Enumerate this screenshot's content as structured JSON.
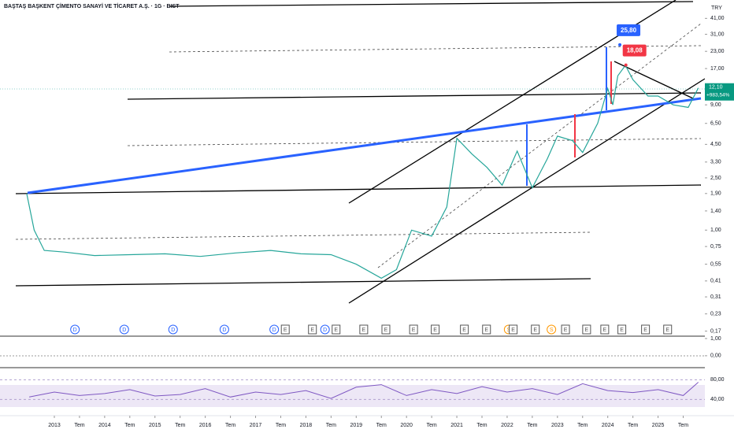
{
  "chart_data": {
    "type": "line",
    "title": "BAŞTAŞ BAŞKENT ÇİMENTO SANAYİ VE TİCARET A.Ş. · 1G · BIST",
    "currency": "TRY",
    "log_scale": true,
    "xlim": [
      2011.92,
      2025.93
    ],
    "xticks": [
      {
        "value": 2013,
        "label": "2013"
      },
      {
        "value": 2013.5,
        "label": "Tem"
      },
      {
        "value": 2014,
        "label": "2014"
      },
      {
        "value": 2014.5,
        "label": "Tem"
      },
      {
        "value": 2015,
        "label": "2015"
      },
      {
        "value": 2015.5,
        "label": "Tem"
      },
      {
        "value": 2016,
        "label": "2016"
      },
      {
        "value": 2016.5,
        "label": "Tem"
      },
      {
        "value": 2017,
        "label": "2017"
      },
      {
        "value": 2017.5,
        "label": "Tem"
      },
      {
        "value": 2018,
        "label": "2018"
      },
      {
        "value": 2018.5,
        "label": "Tem"
      },
      {
        "value": 2019,
        "label": "2019"
      },
      {
        "value": 2019.5,
        "label": "Tem"
      },
      {
        "value": 2020,
        "label": "2020"
      },
      {
        "value": 2020.5,
        "label": "Tem"
      },
      {
        "value": 2021,
        "label": "2021"
      },
      {
        "value": 2021.5,
        "label": "Tem"
      },
      {
        "value": 2022,
        "label": "2022"
      },
      {
        "value": 2022.5,
        "label": "Tem"
      },
      {
        "value": 2023,
        "label": "2023"
      },
      {
        "value": 2023.5,
        "label": "Tem"
      },
      {
        "value": 2024,
        "label": "2024"
      },
      {
        "value": 2024.5,
        "label": "Tem"
      },
      {
        "value": 2025,
        "label": "2025"
      },
      {
        "value": 2025.5,
        "label": "Tem"
      }
    ],
    "ylim": [
      0.16,
      46
    ],
    "yticks": [
      {
        "value": 41,
        "label": "41,00"
      },
      {
        "value": 31,
        "label": "31,00"
      },
      {
        "value": 23,
        "label": "23,00"
      },
      {
        "value": 17,
        "label": "17,00"
      },
      {
        "value": 9,
        "label": "9,00"
      },
      {
        "value": 6.5,
        "label": "6,50"
      },
      {
        "value": 4.5,
        "label": "4,50"
      },
      {
        "value": 3.3,
        "label": "3,30"
      },
      {
        "value": 2.5,
        "label": "2,50"
      },
      {
        "value": 1.9,
        "label": "1,90"
      },
      {
        "value": 1.4,
        "label": "1,40"
      },
      {
        "value": 1,
        "label": "1,00"
      },
      {
        "value": 0.75,
        "label": "0,75"
      },
      {
        "value": 0.55,
        "label": "0,55"
      },
      {
        "value": 0.41,
        "label": "0,41"
      },
      {
        "value": 0.31,
        "label": "0,31"
      },
      {
        "value": 0.23,
        "label": "0,23"
      },
      {
        "value": 0.17,
        "label": "0,17"
      }
    ],
    "series": [
      {
        "name": "BAŞTAŞ",
        "color": "#26a69a",
        "x": [
          2012.45,
          2012.6,
          2012.8,
          2013.2,
          2013.8,
          2014.5,
          2015.2,
          2015.9,
          2016.6,
          2017.3,
          2017.9,
          2018.5,
          2019.0,
          2019.5,
          2019.8,
          2020.1,
          2020.5,
          2020.8,
          2021.0,
          2021.3,
          2021.6,
          2021.9,
          2022.2,
          2022.5,
          2022.8,
          2023.0,
          2023.3,
          2023.5,
          2023.8,
          2024.0,
          2024.1,
          2024.2,
          2024.35,
          2024.5,
          2024.8,
          2025.0,
          2025.3,
          2025.6,
          2025.8
        ],
        "values": [
          1.9,
          1.0,
          0.7,
          0.68,
          0.64,
          0.65,
          0.66,
          0.63,
          0.67,
          0.7,
          0.66,
          0.65,
          0.55,
          0.43,
          0.5,
          1.0,
          0.9,
          1.5,
          5.0,
          3.8,
          3.0,
          2.2,
          4.0,
          2.1,
          3.5,
          5.2,
          4.8,
          3.9,
          6.5,
          12,
          9,
          15,
          18,
          14,
          10.5,
          10.5,
          9,
          8.6,
          12.1
        ]
      }
    ],
    "last_price": {
      "value": 12.1,
      "label": "12,10"
    },
    "change": "+983,54%",
    "annotations": [
      {
        "x": 2024.24,
        "value": 25.8,
        "label": "25,80",
        "color": "#2962ff"
      },
      {
        "x": 2024.36,
        "value": 18.08,
        "label": "18,08",
        "color": "#f23645"
      }
    ],
    "events": [
      {
        "x": 2013.41,
        "label": "D"
      },
      {
        "x": 2014.39,
        "label": "D"
      },
      {
        "x": 2015.36,
        "label": "D"
      },
      {
        "x": 2016.38,
        "label": "D"
      },
      {
        "x": 2017.37,
        "label": "D"
      },
      {
        "x": 2017.59,
        "label": "E"
      },
      {
        "x": 2018.13,
        "label": "E"
      },
      {
        "x": 2018.38,
        "label": "D"
      },
      {
        "x": 2018.6,
        "label": "E"
      },
      {
        "x": 2019.15,
        "label": "E"
      },
      {
        "x": 2019.59,
        "label": "E"
      },
      {
        "x": 2020.14,
        "label": "E"
      },
      {
        "x": 2020.57,
        "label": "E"
      },
      {
        "x": 2021.15,
        "label": "E"
      },
      {
        "x": 2021.59,
        "label": "E"
      },
      {
        "x": 2022.03,
        "label": "S"
      },
      {
        "x": 2022.12,
        "label": "E"
      },
      {
        "x": 2022.56,
        "label": "E"
      },
      {
        "x": 2022.88,
        "label": "S"
      },
      {
        "x": 2023.16,
        "label": "E"
      },
      {
        "x": 2023.58,
        "label": "E"
      },
      {
        "x": 2023.94,
        "label": "E"
      },
      {
        "x": 2024.28,
        "label": "E"
      },
      {
        "x": 2024.75,
        "label": "E"
      },
      {
        "x": 2025.19,
        "label": "E"
      }
    ],
    "macd": {
      "ylim": [
        -0.6,
        1.0
      ],
      "yticks": [
        {
          "value": 1,
          "label": "1,00"
        },
        {
          "value": 0,
          "label": "0,00"
        }
      ]
    },
    "rsi": {
      "color": "#7e57c2",
      "ylim": [
        7,
        103
      ],
      "yticks": [
        {
          "value": 80,
          "label": "80,00"
        },
        {
          "value": 40,
          "label": "40,00"
        }
      ],
      "x": [
        2012.5,
        2013,
        2013.5,
        2014,
        2014.5,
        2015,
        2015.5,
        2016,
        2016.5,
        2017,
        2017.5,
        2018,
        2018.5,
        2019,
        2019.5,
        2020,
        2020.5,
        2021,
        2021.5,
        2022,
        2022.5,
        2023,
        2023.5,
        2024,
        2024.5,
        2025,
        2025.5,
        2025.8
      ],
      "values": [
        45,
        55,
        48,
        52,
        60,
        47,
        50,
        62,
        45,
        55,
        50,
        58,
        42,
        65,
        70,
        48,
        60,
        52,
        66,
        55,
        62,
        50,
        72,
        58,
        54,
        60,
        48,
        75
      ]
    }
  }
}
